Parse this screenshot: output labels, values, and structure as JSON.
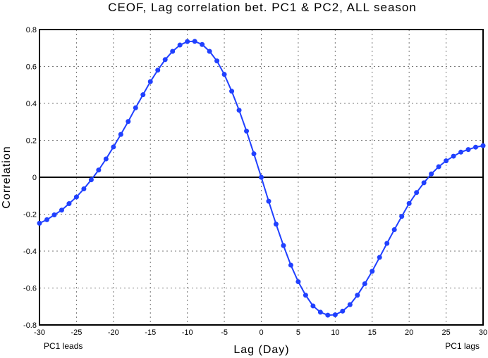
{
  "chart_data": {
    "type": "line",
    "title": "CEOF, Lag correlation bet. PC1 & PC2, ALL season",
    "xlabel": "Lag (Day)",
    "ylabel": "Correlation",
    "xlim": [
      -30,
      30
    ],
    "ylim": [
      -0.8,
      0.8
    ],
    "xticks": [
      -30,
      -25,
      -20,
      -15,
      -10,
      -5,
      0,
      5,
      10,
      15,
      20,
      25,
      30
    ],
    "yticks": [
      -0.8,
      -0.6,
      -0.4,
      -0.2,
      0,
      0.2,
      0.4,
      0.6,
      0.8
    ],
    "grid": true,
    "annotations": {
      "left": "PC1 leads",
      "right": "PC1 lags"
    },
    "series_color": "#2040ff",
    "series": [
      {
        "name": "lag correlation",
        "x": [
          -30,
          -29,
          -28,
          -27,
          -26,
          -25,
          -24,
          -23,
          -22,
          -21,
          -20,
          -19,
          -18,
          -17,
          -16,
          -15,
          -14,
          -13,
          -12,
          -11,
          -10,
          -9,
          -8,
          -7,
          -6,
          -5,
          -4,
          -3,
          -2,
          -1,
          0,
          1,
          2,
          3,
          4,
          5,
          6,
          7,
          8,
          9,
          10,
          11,
          12,
          13,
          14,
          15,
          16,
          17,
          18,
          19,
          20,
          21,
          22,
          23,
          24,
          25,
          26,
          27,
          28,
          29,
          30
        ],
        "values": [
          -0.249,
          -0.23,
          -0.204,
          -0.178,
          -0.143,
          -0.107,
          -0.063,
          -0.014,
          0.039,
          0.099,
          0.164,
          0.232,
          0.302,
          0.376,
          0.447,
          0.518,
          0.58,
          0.637,
          0.682,
          0.716,
          0.735,
          0.736,
          0.719,
          0.682,
          0.63,
          0.557,
          0.466,
          0.363,
          0.25,
          0.127,
          0.0,
          -0.13,
          -0.254,
          -0.37,
          -0.476,
          -0.566,
          -0.639,
          -0.697,
          -0.731,
          -0.747,
          -0.745,
          -0.725,
          -0.69,
          -0.639,
          -0.577,
          -0.509,
          -0.434,
          -0.358,
          -0.284,
          -0.212,
          -0.142,
          -0.083,
          -0.03,
          0.018,
          0.057,
          0.089,
          0.114,
          0.136,
          0.15,
          0.163,
          0.171
        ]
      }
    ]
  }
}
